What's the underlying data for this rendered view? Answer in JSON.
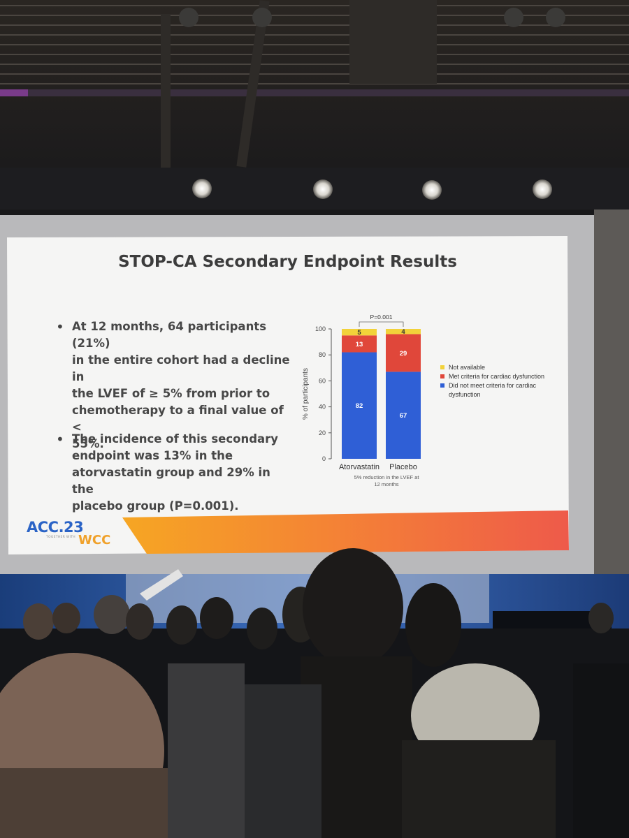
{
  "slide": {
    "title": "STOP-CA Secondary Endpoint Results",
    "bullets": [
      {
        "lines": [
          "At 12 months, 64 participants (21%)",
          "in the entire cohort had a decline in",
          "the LVEF of ≥ 5% from prior to",
          "chemotherapy to a final value of <",
          "55%."
        ]
      },
      {
        "lines": [
          "The incidence of this secondary",
          "endpoint was 13% in the",
          "atorvastatin group and 29% in the",
          "placebo group (P=0.001)."
        ]
      }
    ],
    "logo": {
      "acc": "ACC.23",
      "tagline": "TOGETHER WITH",
      "wcc": "WCC"
    }
  },
  "chart_data": {
    "type": "bar",
    "stacked": true,
    "categories": [
      "Atorvastatin",
      "Placebo"
    ],
    "series": [
      {
        "name": "Did not meet criteria for cardiac dysfunction",
        "values": [
          82,
          67
        ],
        "color": "#2f5fd6"
      },
      {
        "name": "Met criteria for cardiac dysfunction",
        "values": [
          13,
          29
        ],
        "color": "#e0473a"
      },
      {
        "name": "Not available",
        "values": [
          5,
          4
        ],
        "color": "#f2d23a"
      }
    ],
    "legend_lines": [
      {
        "color": "#f2d23a",
        "lines": [
          "Not available"
        ]
      },
      {
        "color": "#e0473a",
        "lines": [
          "Met criteria for cardiac dysfunction"
        ]
      },
      {
        "color": "#2f5fd6",
        "lines": [
          "Did not meet criteria for cardiac",
          "dysfunction"
        ]
      }
    ],
    "ylabel": "% of participants",
    "xlabel_lines": [
      "5% reduction in the LVEF at",
      "12 months"
    ],
    "yticks": [
      0,
      20,
      40,
      60,
      80,
      100
    ],
    "ylim": [
      0,
      100
    ],
    "pvalue": "P=0.001",
    "legend_position": "right"
  }
}
